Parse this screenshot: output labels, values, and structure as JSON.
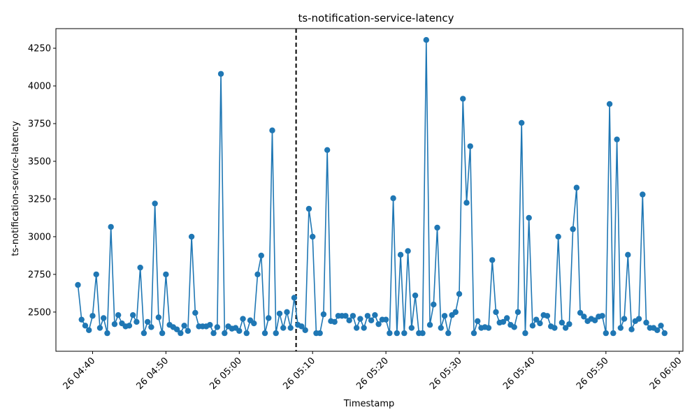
{
  "chart_data": {
    "type": "line",
    "title": "ts-notification-service-latency",
    "xlabel": "Timestamp",
    "ylabel": "ts-notification-service-latency",
    "x_start": "2025-01-26T04:38:00",
    "x_step_seconds": 30,
    "xlim": [
      "2025-01-26T04:35:00",
      "2025-01-26T06:00:30"
    ],
    "ylim": [
      2240,
      4380
    ],
    "x_ticks": [
      {
        "t": "2025-01-26T04:40:00",
        "label": "26 04:40"
      },
      {
        "t": "2025-01-26T04:50:00",
        "label": "26 04:50"
      },
      {
        "t": "2025-01-26T05:00:00",
        "label": "26 05:00"
      },
      {
        "t": "2025-01-26T05:10:00",
        "label": "26 05:10"
      },
      {
        "t": "2025-01-26T05:20:00",
        "label": "26 05:20"
      },
      {
        "t": "2025-01-26T05:30:00",
        "label": "26 05:30"
      },
      {
        "t": "2025-01-26T05:40:00",
        "label": "26 05:40"
      },
      {
        "t": "2025-01-26T05:50:00",
        "label": "26 05:50"
      },
      {
        "t": "2025-01-26T06:00:00",
        "label": "26 06:00"
      }
    ],
    "y_ticks": [
      2500,
      2750,
      3000,
      3250,
      3500,
      3750,
      4000,
      4250
    ],
    "vline": {
      "t": "2025-01-26T05:07:45",
      "style": "dashed"
    },
    "grid": false,
    "series": [
      {
        "color": "#1f77b4",
        "marker": "circle",
        "values": [
          2680,
          2450,
          2410,
          2380,
          2475,
          2750,
          2395,
          2460,
          2360,
          3065,
          2420,
          2480,
          2425,
          2405,
          2410,
          2480,
          2435,
          2795,
          2360,
          2435,
          2400,
          3220,
          2465,
          2360,
          2750,
          2415,
          2400,
          2385,
          2360,
          2410,
          2375,
          3000,
          2495,
          2405,
          2405,
          2405,
          2415,
          2360,
          2400,
          4080,
          2360,
          2405,
          2390,
          2395,
          2375,
          2455,
          2360,
          2445,
          2425,
          2750,
          2875,
          2360,
          2460,
          3705,
          2360,
          2490,
          2395,
          2500,
          2395,
          2595,
          2415,
          2405,
          2380,
          3185,
          3000,
          2360,
          2360,
          2485,
          3575,
          2440,
          2435,
          2475,
          2475,
          2475,
          2445,
          2475,
          2395,
          2455,
          2395,
          2475,
          2445,
          2480,
          2420,
          2450,
          2450,
          2360,
          3255,
          2360,
          2880,
          2360,
          2905,
          2395,
          2610,
          2360,
          2360,
          4305,
          2415,
          2550,
          3060,
          2395,
          2475,
          2360,
          2480,
          2500,
          2620,
          3915,
          3225,
          3600,
          2360,
          2440,
          2395,
          2400,
          2395,
          2845,
          2500,
          2430,
          2435,
          2460,
          2415,
          2400,
          2500,
          3755,
          2360,
          3125,
          2410,
          2450,
          2425,
          2480,
          2475,
          2405,
          2395,
          3000,
          2430,
          2395,
          2420,
          3050,
          3325,
          2495,
          2470,
          2440,
          2455,
          2445,
          2470,
          2475,
          2360,
          3880,
          2360,
          3645,
          2395,
          2455,
          2880,
          2385,
          2440,
          2455,
          3280,
          2430,
          2395,
          2395,
          2380,
          2410,
          2360
        ]
      }
    ]
  }
}
